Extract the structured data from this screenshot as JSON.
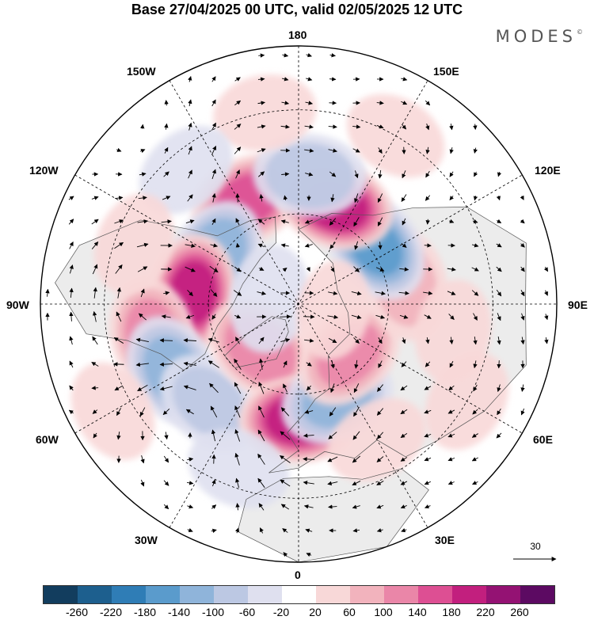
{
  "title": "Base 27/04/2025 00 UTC, valid 02/05/2025 12 UTC",
  "brand": {
    "name": "MODES",
    "mark": "©"
  },
  "longitude_labels": {
    "top": "180",
    "bottom": "0",
    "left": "90W",
    "right": "90E",
    "upper_left_1": "150W",
    "upper_left_2": "120W",
    "upper_right_1": "150E",
    "upper_right_2": "120E",
    "lower_left_1": "60W",
    "lower_left_2": "30W",
    "lower_right_1": "60E",
    "lower_right_2": "30E"
  },
  "reference_vector": {
    "label": "30"
  },
  "colorbar": {
    "colors": [
      "#123d5e",
      "#1d5f8e",
      "#2f7db6",
      "#5a9bcc",
      "#8fb4da",
      "#bcc8e3",
      "#dfe0ef",
      "#ffffff",
      "#f8d8d8",
      "#f2b3bd",
      "#ea86a8",
      "#dd4f93",
      "#c21f7e",
      "#941273",
      "#5c0a62"
    ],
    "ticks": [
      "-260",
      "-220",
      "-180",
      "-140",
      "-100",
      "-60",
      "-20",
      "20",
      "60",
      "100",
      "140",
      "180",
      "220",
      "260"
    ]
  },
  "anomalies": [
    {
      "lon": -154,
      "lat": 52,
      "value": 160
    },
    {
      "lon": -120,
      "lat": 58,
      "value": -140
    },
    {
      "lon": -96,
      "lat": 55,
      "value": 200
    },
    {
      "lon": -78,
      "lat": 42,
      "value": 120
    },
    {
      "lon": -62,
      "lat": 44,
      "value": -120
    },
    {
      "lon": -42,
      "lat": 47,
      "value": -80
    },
    {
      "lon": -40,
      "lat": 70,
      "value": 140
    },
    {
      "lon": 0,
      "lat": 52,
      "value": 210
    },
    {
      "lon": 22,
      "lat": 56,
      "value": -120
    },
    {
      "lon": 45,
      "lat": 66,
      "value": 120
    },
    {
      "lon": 100,
      "lat": 54,
      "value": 80
    },
    {
      "lon": 127,
      "lat": 58,
      "value": -150
    },
    {
      "lon": 160,
      "lat": 55,
      "value": 220
    },
    {
      "lon": 175,
      "lat": 48,
      "value": -100
    },
    {
      "lon": -170,
      "lat": 30,
      "value": 40
    },
    {
      "lon": 150,
      "lat": 30,
      "value": 40
    },
    {
      "lon": -140,
      "lat": 35,
      "value": -40
    },
    {
      "lon": -110,
      "lat": 35,
      "value": 40
    },
    {
      "lon": -60,
      "lat": 25,
      "value": 40
    },
    {
      "lon": 60,
      "lat": 30,
      "value": 40
    },
    {
      "lon": 80,
      "lat": 40,
      "value": 40
    },
    {
      "lon": 30,
      "lat": 40,
      "value": 40
    },
    {
      "lon": -20,
      "lat": 35,
      "value": -40
    },
    {
      "lon": -100,
      "lat": 80,
      "value": -60
    },
    {
      "lon": 80,
      "lat": 78,
      "value": 30
    }
  ]
}
